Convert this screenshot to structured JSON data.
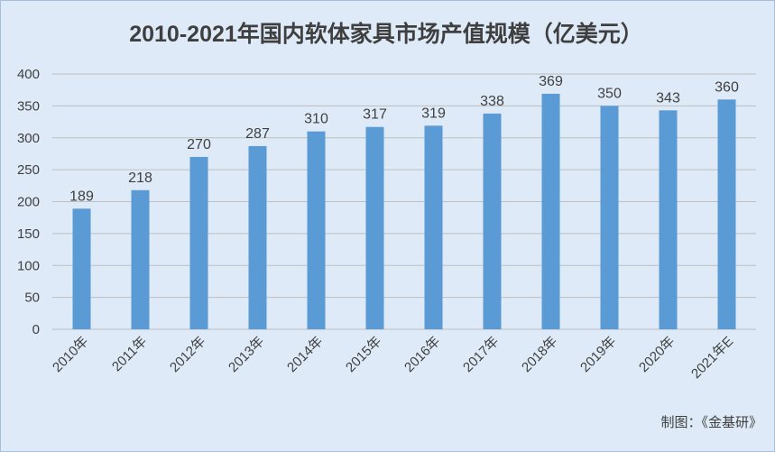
{
  "chart_data": {
    "type": "bar",
    "title": "2010-2021年国内软体家具市场产值规模（亿美元）",
    "categories": [
      "2010年",
      "2011年",
      "2012年",
      "2013年",
      "2014年",
      "2015年",
      "2016年",
      "2017年",
      "2018年",
      "2019年",
      "2020年",
      "2021年E"
    ],
    "values": [
      189,
      218,
      270,
      287,
      310,
      317,
      319,
      338,
      369,
      350,
      343,
      360
    ],
    "ylim": [
      0,
      400
    ],
    "yticks": [
      0,
      50,
      100,
      150,
      200,
      250,
      300,
      350,
      400
    ],
    "xlabel": "",
    "ylabel": "",
    "grid": true,
    "legend": "none",
    "bar_color": "#5b9bd5",
    "grid_color": "#bfbfbf",
    "background_color": "#deeaf7"
  },
  "credit": "制图：《金基研》"
}
